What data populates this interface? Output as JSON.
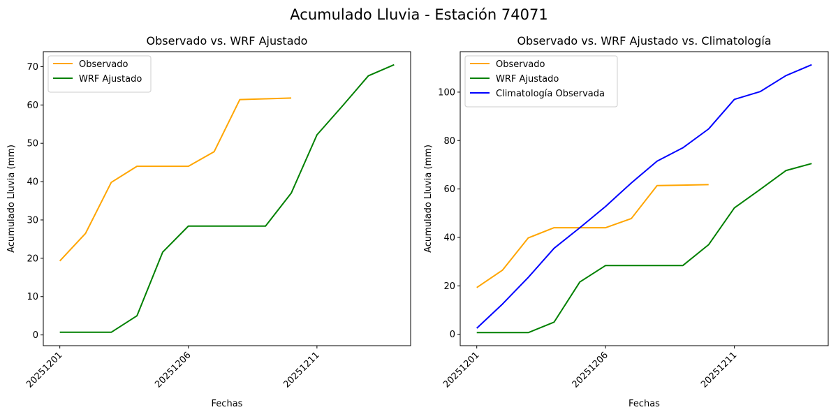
{
  "figure": {
    "suptitle": "Acumulado Lluvia - Estación 74071"
  },
  "chart_data": [
    {
      "type": "line",
      "title": "Observado vs. WRF Ajustado",
      "xlabel": "Fechas",
      "ylabel": "Acumulado Lluvia (mm)",
      "x": [
        "20251201",
        "20251202",
        "20251203",
        "20251204",
        "20251205",
        "20251206",
        "20251207",
        "20251208",
        "20251209",
        "20251210",
        "20251211",
        "20251212",
        "20251213",
        "20251214"
      ],
      "xticks": [
        "20251201",
        "20251206",
        "20251211"
      ],
      "yticks": [
        0,
        10,
        20,
        30,
        40,
        50,
        60,
        70
      ],
      "ylim": [
        -2.8,
        73.9
      ],
      "legend": "upper-left",
      "series": [
        {
          "name": "Observado",
          "color": "#ffa500",
          "values": [
            19.3,
            26.5,
            39.8,
            44.0,
            44.0,
            44.0,
            47.8,
            61.4,
            61.6,
            61.8,
            null,
            null,
            null,
            null
          ]
        },
        {
          "name": "WRF Ajustado",
          "color": "#008000",
          "values": [
            0.7,
            0.7,
            0.7,
            5.0,
            21.6,
            28.4,
            28.4,
            28.4,
            28.4,
            37.0,
            52.2,
            59.8,
            67.6,
            70.5
          ]
        }
      ]
    },
    {
      "type": "line",
      "title": "Observado vs. WRF Ajustado vs. Climatología",
      "xlabel": "Fechas",
      "ylabel": "Acumulado Lluvia (mm)",
      "x": [
        "20251201",
        "20251202",
        "20251203",
        "20251204",
        "20251205",
        "20251206",
        "20251207",
        "20251208",
        "20251209",
        "20251210",
        "20251211",
        "20251212",
        "20251213",
        "20251214"
      ],
      "xticks": [
        "20251201",
        "20251206",
        "20251211"
      ],
      "yticks": [
        0,
        20,
        40,
        60,
        80,
        100
      ],
      "ylim": [
        -4.7,
        116.7
      ],
      "legend": "upper-left",
      "series": [
        {
          "name": "Observado",
          "color": "#ffa500",
          "values": [
            19.3,
            26.5,
            39.8,
            44.0,
            44.0,
            44.0,
            47.8,
            61.4,
            61.6,
            61.8,
            null,
            null,
            null,
            null
          ]
        },
        {
          "name": "WRF Ajustado",
          "color": "#008000",
          "values": [
            0.7,
            0.7,
            0.7,
            5.0,
            21.6,
            28.4,
            28.4,
            28.4,
            28.4,
            37.0,
            52.2,
            59.8,
            67.6,
            70.5
          ]
        },
        {
          "name": "Climatología Observada",
          "color": "#0000ff",
          "values": [
            2.5,
            12.5,
            23.5,
            35.5,
            44.0,
            52.8,
            62.5,
            71.5,
            77.0,
            84.8,
            97.0,
            100.2,
            106.8,
            111.3
          ]
        }
      ]
    }
  ]
}
